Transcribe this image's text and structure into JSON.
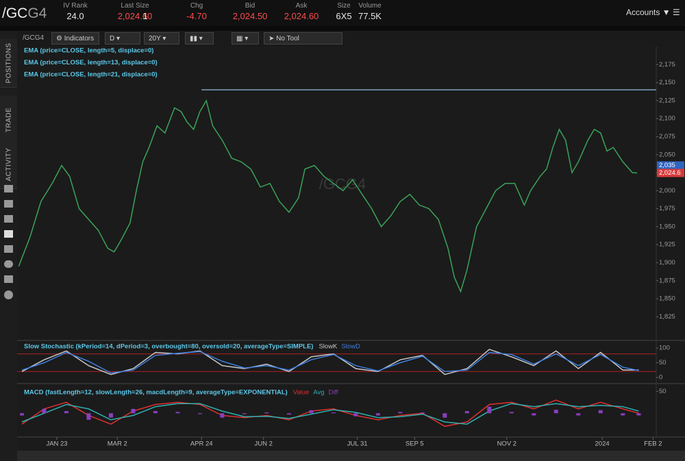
{
  "header": {
    "symbol": "/GC",
    "symbol_suffix": "G4",
    "fields": [
      {
        "label": "IV Rank",
        "value": "24.0"
      },
      {
        "label": "Last Size",
        "value": "2,024.60",
        "extra": "1"
      },
      {
        "label": "Chg",
        "value": "-4.70"
      },
      {
        "label": "Bid",
        "value": "2,024.50"
      },
      {
        "label": "Ask",
        "value": "2,024.60"
      },
      {
        "label": "Size",
        "value": "6X5"
      },
      {
        "label": "Volume",
        "value": "77.5K"
      }
    ],
    "accounts": "Accounts"
  },
  "sidebar_tabs": [
    "POSITIONS",
    "TRADE",
    "ACTIVITY"
  ],
  "toolbar": {
    "symbol": "/GCG4",
    "indicators": "Indicators",
    "aggregation": "D",
    "period": "20Y",
    "tool": "No Tool"
  },
  "chart_data": [
    {
      "type": "line",
      "studies": [
        "EMA (price=CLOSE, length=5, displace=0)",
        "EMA (price=CLOSE, length=13, displace=0)",
        "EMA (price=CLOSE, length=21, displace=0)"
      ],
      "xlim": [
        -3,
        399
      ],
      "xticks": [
        {
          "value": 22,
          "label": "JAN 23"
        },
        {
          "value": 60,
          "label": "MAR 2"
        },
        {
          "value": 113,
          "label": "APR 24"
        },
        {
          "value": 152,
          "label": "JUN 2"
        },
        {
          "value": 211,
          "label": "JUL 31"
        },
        {
          "value": 247,
          "label": "SEP 5"
        },
        {
          "value": 305,
          "label": "NOV 2"
        },
        {
          "value": 365,
          "label": "2024"
        },
        {
          "value": 397,
          "label": "FEB 2"
        }
      ],
      "ylim": [
        1794,
        2200
      ],
      "yticks": [
        {
          "value": 1825,
          "label": "1,825"
        },
        {
          "value": 1850,
          "label": "1,850"
        },
        {
          "value": 1875,
          "label": "1,875"
        },
        {
          "value": 1900,
          "label": "1,900"
        },
        {
          "value": 1925,
          "label": "1,925"
        },
        {
          "value": 1950,
          "label": "1,950"
        },
        {
          "value": 1975,
          "label": "1,975"
        },
        {
          "value": 2000,
          "label": "2,000"
        },
        {
          "value": 2025,
          "label": "2,025"
        },
        {
          "value": 2050,
          "label": "2,050"
        },
        {
          "value": 2075,
          "label": "2,075"
        },
        {
          "value": 2100,
          "label": "2,100"
        },
        {
          "value": 2125,
          "label": "2,125"
        },
        {
          "value": 2150,
          "label": "2,150"
        },
        {
          "value": 2175,
          "label": "2,175"
        }
      ],
      "x": [
        -2,
        5,
        12,
        19,
        25,
        30,
        36,
        42,
        48,
        54,
        58,
        62,
        68,
        72,
        76,
        80,
        85,
        90,
        96,
        100,
        104,
        108,
        112,
        116,
        120,
        126,
        132,
        138,
        144,
        150,
        156,
        162,
        168,
        174,
        178,
        184,
        190,
        196,
        202,
        208,
        214,
        220,
        226,
        232,
        238,
        244,
        250,
        256,
        262,
        268,
        272,
        276,
        280,
        286,
        292,
        298,
        304,
        310,
        316,
        320,
        326,
        330,
        334,
        338,
        342,
        346,
        350,
        356,
        360,
        364,
        368,
        372,
        378,
        384,
        387
      ],
      "values": [
        1895,
        1935,
        1985,
        2010,
        2035,
        2020,
        1975,
        1960,
        1945,
        1920,
        1915,
        1930,
        1955,
        2000,
        2040,
        2060,
        2090,
        2080,
        2115,
        2110,
        2095,
        2085,
        2110,
        2125,
        2090,
        2070,
        2045,
        2040,
        2030,
        2005,
        2010,
        1985,
        1970,
        1990,
        2030,
        2035,
        2020,
        2010,
        2000,
        2015,
        1995,
        1975,
        1950,
        1965,
        1985,
        1995,
        1980,
        1975,
        1960,
        1920,
        1880,
        1860,
        1890,
        1950,
        1975,
        2000,
        2010,
        2010,
        1980,
        2000,
        2020,
        2030,
        2060,
        2085,
        2070,
        2025,
        2040,
        2070,
        2085,
        2080,
        2055,
        2060,
        2040,
        2025,
        2024.6
      ],
      "color": "#3aa35a",
      "hline": 2140,
      "hline_start": 113,
      "hline_color": "#7f9fbf",
      "price_tags": [
        {
          "value": 2035,
          "label": "2,035",
          "color": "#2f64c0"
        },
        {
          "value": 2024.6,
          "label": "2,024.6",
          "color": "#d83a3a"
        }
      ]
    },
    {
      "type": "line",
      "title": "Slow Stochastic (kPeriod=14, dPeriod=3, overbought=80, oversold=20, averageType=SIMPLE)",
      "xlim": [
        -3,
        399
      ],
      "ylim": [
        0,
        100
      ],
      "yticks": [
        0,
        50,
        100
      ],
      "levels": [
        80,
        20
      ],
      "level_color": "#b02020",
      "x": [
        0,
        14,
        28,
        42,
        56,
        70,
        84,
        98,
        112,
        126,
        140,
        154,
        168,
        182,
        196,
        210,
        224,
        238,
        252,
        266,
        280,
        294,
        308,
        322,
        336,
        350,
        364,
        378,
        388
      ],
      "series": [
        {
          "name": "SlowK",
          "color": "#c8c8c8",
          "values": [
            20,
            60,
            90,
            40,
            10,
            30,
            85,
            80,
            90,
            40,
            30,
            45,
            20,
            70,
            80,
            30,
            20,
            60,
            75,
            10,
            30,
            95,
            70,
            40,
            90,
            30,
            85,
            25,
            25
          ]
        },
        {
          "name": "SlowD",
          "color": "#3d7fe0",
          "values": [
            25,
            50,
            85,
            55,
            15,
            25,
            75,
            82,
            88,
            55,
            32,
            40,
            25,
            60,
            78,
            40,
            22,
            50,
            72,
            20,
            25,
            85,
            78,
            45,
            80,
            40,
            78,
            35,
            23
          ]
        }
      ]
    },
    {
      "type": "line",
      "title": "MACD (fastLength=12, slowLength=26, macdLength=9, averageType=EXPONENTIAL)",
      "xlim": [
        -3,
        399
      ],
      "ylim": [
        -45,
        60
      ],
      "yticks": [
        50
      ],
      "x": [
        0,
        14,
        28,
        42,
        56,
        70,
        84,
        98,
        112,
        126,
        140,
        154,
        168,
        182,
        196,
        210,
        224,
        238,
        252,
        266,
        280,
        294,
        308,
        322,
        336,
        350,
        364,
        378,
        388
      ],
      "series": [
        {
          "name": "Value",
          "color": "#e03030",
          "values": [
            -25,
            10,
            25,
            -5,
            -25,
            5,
            20,
            25,
            20,
            -5,
            -10,
            -5,
            -15,
            5,
            10,
            -5,
            -15,
            -5,
            0,
            -30,
            -20,
            20,
            25,
            10,
            30,
            10,
            25,
            10,
            0
          ]
        },
        {
          "name": "Avg",
          "color": "#30b0b0",
          "values": [
            -20,
            0,
            20,
            10,
            -15,
            -5,
            15,
            22,
            22,
            5,
            -8,
            -7,
            -12,
            -2,
            8,
            2,
            -10,
            -8,
            -2,
            -20,
            -25,
            5,
            22,
            15,
            22,
            15,
            18,
            15,
            5
          ]
        },
        {
          "name": "Diff",
          "type": "bar",
          "color": "#8a3fc0",
          "values": [
            -5,
            10,
            5,
            -15,
            -10,
            10,
            5,
            3,
            -2,
            -10,
            -2,
            2,
            -3,
            7,
            2,
            -7,
            -5,
            3,
            2,
            -10,
            5,
            15,
            3,
            -5,
            8,
            -5,
            7,
            -5,
            -5
          ]
        }
      ]
    }
  ]
}
